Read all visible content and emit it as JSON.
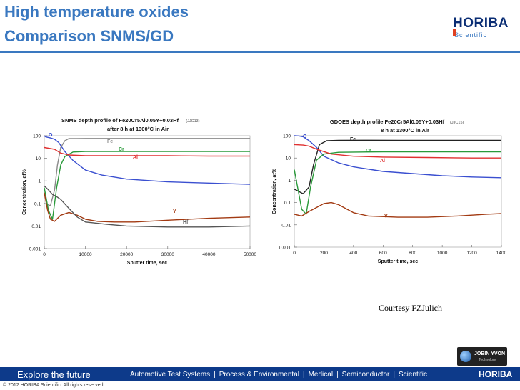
{
  "slide": {
    "title_line1": "High temperature oxides",
    "title_line2": "Comparison SNMS/GD",
    "brand": "HORIBA",
    "brand_sub": "Scientific",
    "courtesy": "Courtesy FZJulich",
    "partner_logo_name": "JOBIN YVON",
    "partner_logo_sub": "Technology",
    "footer_tagline": "Explore the future",
    "footer_links": [
      "Automotive Test Systems",
      "Process & Environmental",
      "Medical",
      "Semiconductor",
      "Scientific"
    ],
    "footer_brand": "HORIBA",
    "copyright": "© 2012 HORIBA Scientific. All rights reserved.",
    "colors": {
      "title": "#3a78c0",
      "footer": "#0d3a8a"
    }
  },
  "chart_data": [
    {
      "type": "line",
      "title": "SNMS depth profile of Fe20Cr5Al0.05Y+0.03Hf",
      "title_note": "(JJC13)",
      "subtitle": "after 8 h at 1300°C in Air",
      "xlabel": "Sputter time, sec",
      "ylabel": "Concentration, at%",
      "yscale": "log",
      "xlim": [
        0,
        50000
      ],
      "ylim": [
        0.001,
        100
      ],
      "xticks": [
        "0",
        "10000",
        "20000",
        "30000",
        "40000",
        "50000"
      ],
      "yticks": [
        "0.001",
        "0.01",
        "0.1",
        "1",
        "10",
        "100"
      ],
      "series": [
        {
          "name": "O",
          "color": "#3a4fd0",
          "x": [
            0,
            300,
            800,
            1500,
            2500,
            3500,
            5000,
            7000,
            10000,
            14000,
            20000,
            30000,
            40000,
            50000
          ],
          "y": [
            100,
            90,
            85,
            80,
            70,
            50,
            20,
            8,
            3,
            1.8,
            1.2,
            0.9,
            0.8,
            0.7
          ]
        },
        {
          "name": "Fe",
          "color": "#8a8a8a",
          "x": [
            0,
            1500,
            2500,
            3200,
            4000,
            5000,
            6000,
            8000,
            10000,
            20000,
            30000,
            40000,
            50000
          ],
          "y": [
            0.1,
            0.08,
            0.4,
            5,
            30,
            60,
            75,
            75,
            76,
            76,
            76,
            76,
            76
          ]
        },
        {
          "name": "Cr",
          "color": "#2a9a3a",
          "x": [
            0,
            1000,
            2000,
            3000,
            4000,
            5000,
            7000,
            10000,
            20000,
            30000,
            40000,
            50000
          ],
          "y": [
            0.5,
            0.05,
            0.02,
            0.5,
            5,
            12,
            19,
            20,
            20,
            20,
            20,
            20
          ]
        },
        {
          "name": "Al",
          "color": "#e03030",
          "x": [
            0,
            1000,
            2500,
            4000,
            6000,
            10000,
            20000,
            30000,
            40000,
            50000
          ],
          "y": [
            30,
            28,
            25,
            17,
            14,
            13,
            13,
            13,
            12.5,
            12.5
          ]
        },
        {
          "name": "Y",
          "color": "#a23a12",
          "x": [
            0,
            800,
            1500,
            2500,
            4000,
            6000,
            8000,
            10000,
            13000,
            17000,
            22000,
            30000,
            40000,
            50000
          ],
          "y": [
            0.3,
            0.05,
            0.02,
            0.016,
            0.03,
            0.04,
            0.03,
            0.02,
            0.016,
            0.015,
            0.015,
            0.018,
            0.022,
            0.025
          ]
        },
        {
          "name": "Hf",
          "color": "#555555",
          "x": [
            0,
            1000,
            2000,
            3000,
            4000,
            6000,
            8000,
            10000,
            15000,
            20000,
            30000,
            40000,
            50000
          ],
          "y": [
            0.6,
            0.4,
            0.25,
            0.2,
            0.15,
            0.06,
            0.025,
            0.015,
            0.012,
            0.01,
            0.009,
            0.009,
            0.01
          ]
        }
      ]
    },
    {
      "type": "line",
      "title": "GDOES depth profile Fe20Cr5Al0.05Y+0.03Hf",
      "title_note": "(JJC15)",
      "subtitle": "8 h at 1300°C in Air",
      "xlabel": "Sputter time, sec",
      "ylabel": "Concentration, at%",
      "yscale": "log",
      "xlim": [
        0,
        1400
      ],
      "ylim": [
        0.001,
        100
      ],
      "xticks": [
        "0",
        "200",
        "400",
        "600",
        "800",
        "1000",
        "1200",
        "1400"
      ],
      "yticks": [
        "0.001",
        "0.01",
        "0.1",
        "1",
        "10",
        "100"
      ],
      "series": [
        {
          "name": "O",
          "color": "#3a4fd0",
          "x": [
            0,
            30,
            60,
            100,
            150,
            200,
            300,
            400,
            600,
            800,
            1000,
            1200,
            1400
          ],
          "y": [
            100,
            98,
            90,
            60,
            30,
            12,
            6,
            4,
            2.5,
            2,
            1.6,
            1.4,
            1.3
          ]
        },
        {
          "name": "Fe",
          "color": "#222222",
          "x": [
            0,
            60,
            100,
            130,
            170,
            220,
            300,
            500,
            700,
            900,
            1100,
            1400
          ],
          "y": [
            0.4,
            0.25,
            0.5,
            5,
            40,
            60,
            62,
            63,
            62,
            62,
            62,
            62
          ]
        },
        {
          "name": "Cr",
          "color": "#2a9a3a",
          "x": [
            0,
            50,
            80,
            110,
            150,
            200,
            300,
            600,
            900,
            1200,
            1400
          ],
          "y": [
            3,
            0.05,
            0.03,
            0.5,
            8,
            15,
            18,
            19,
            19,
            19,
            19
          ]
        },
        {
          "name": "Al",
          "color": "#e03030",
          "x": [
            0,
            60,
            100,
            150,
            250,
            400,
            600,
            900,
            1200,
            1400
          ],
          "y": [
            40,
            38,
            34,
            25,
            15,
            12,
            11,
            10.5,
            10,
            10
          ]
        },
        {
          "name": "Y",
          "color": "#a23a12",
          "x": [
            0,
            50,
            100,
            150,
            200,
            250,
            300,
            400,
            500,
            700,
            900,
            1100,
            1300,
            1400
          ],
          "y": [
            0.03,
            0.025,
            0.04,
            0.06,
            0.09,
            0.1,
            0.08,
            0.035,
            0.025,
            0.022,
            0.022,
            0.025,
            0.03,
            0.032
          ]
        }
      ]
    }
  ]
}
